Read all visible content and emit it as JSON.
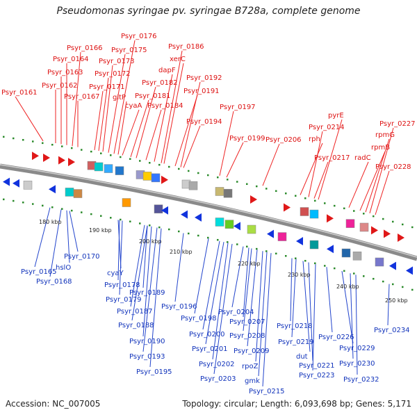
{
  "title": "Pseudomonas syringae pv. syringae B728a, complete genome",
  "footer": {
    "accession_label": "Accession:",
    "accession": "NC_007005",
    "topology_label": "Topology:",
    "topology": "circular",
    "length_label": "Length:",
    "length": "6,093,698 bp",
    "genes_label": "Genes:",
    "genes": "5,171"
  },
  "kbp_marks": [
    "180 kbp",
    "190 kbp",
    "200 kbp",
    "210 kbp",
    "220 kbp",
    "230 kbp",
    "240 kbp",
    "250 kbp"
  ],
  "top_labels": [
    "Psyr_0161",
    "Psyr_0162",
    "Psyr_0163",
    "Psyr_0164",
    "Psyr_0166",
    "Psyr_0167",
    "Psyr_0171",
    "Psyr_0172",
    "Psyr_0173",
    "Psyr_0175",
    "Psyr_0176",
    "gltP",
    "Psyr_0181",
    "Psyr_0182",
    "cyaA",
    "Psyr_0184",
    "dapF",
    "Psyr_0186",
    "xerC",
    "Psyr_0191",
    "Psyr_0192",
    "Psyr_0194",
    "Psyr_0197",
    "Psyr_0199",
    "Psyr_0206",
    "rph",
    "Psyr_0214",
    "pyrE",
    "Psyr_0217",
    "radC",
    "rpmB",
    "rpmG",
    "Psyr_0227",
    "Psyr_0228"
  ],
  "bottom_labels": [
    "Psyr_0165",
    "Psyr_0168",
    "hslO",
    "Psyr_0170",
    "cyaY",
    "Psyr_0178",
    "Psyr_0179",
    "Psyr_0187",
    "Psyr_0188",
    "Psyr_0189",
    "Psyr_0190",
    "Psyr_0193",
    "Psyr_0195",
    "Psyr_0196",
    "Psyr_0198",
    "Psyr_0200",
    "Psyr_0201",
    "Psyr_0202",
    "Psyr_0203",
    "Psyr_0204",
    "Psyr_0207",
    "Psyr_0208",
    "Psyr_0209",
    "rpoZ",
    "gmk",
    "Psyr_0215",
    "Psyr_0218",
    "Psyr_0219",
    "dut",
    "Psyr_0221",
    "Psyr_0223",
    "Psyr_0226",
    "Psyr_0229",
    "Psyr_0230",
    "Psyr_0232",
    "Psyr_0234"
  ]
}
